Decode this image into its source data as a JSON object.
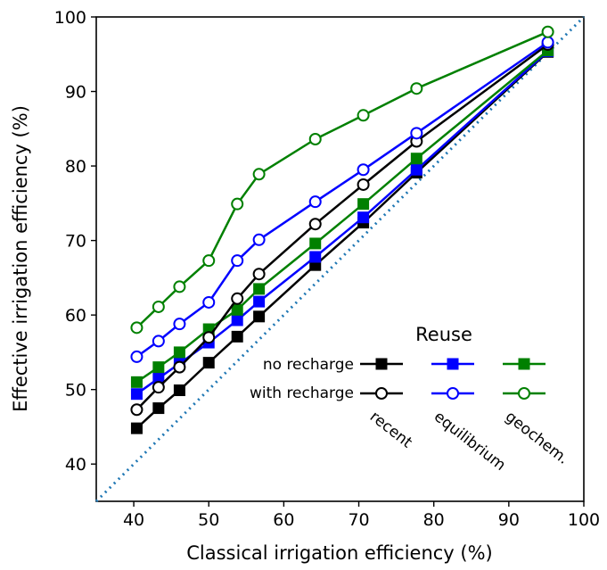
{
  "chart_data": {
    "type": "line",
    "title": "",
    "xlabel": "Classical irrigation efficiency (%)",
    "ylabel": "Effective irrigation efficiency  (%)",
    "xlim": [
      35,
      100
    ],
    "ylim": [
      35,
      100
    ],
    "xticks": [
      40,
      50,
      60,
      70,
      80,
      90,
      100
    ],
    "yticks": [
      40,
      50,
      60,
      70,
      80,
      90,
      100
    ],
    "x": [
      40.4,
      43.3,
      46.1,
      50.0,
      53.8,
      56.7,
      64.2,
      70.6,
      77.7,
      95.2
    ],
    "series": [
      {
        "scenario": "recent",
        "recharge": "no recharge",
        "marker": "square-filled",
        "color": "#000000",
        "values": [
          44.8,
          47.5,
          49.9,
          53.6,
          57.1,
          59.8,
          66.7,
          72.4,
          79.1,
          95.3
        ]
      },
      {
        "scenario": "equilibrium",
        "recharge": "no recharge",
        "marker": "square-filled",
        "color": "#0000ff",
        "values": [
          49.4,
          51.5,
          53.5,
          56.3,
          59.3,
          61.8,
          67.8,
          73.1,
          79.5,
          95.4
        ]
      },
      {
        "scenario": "geochem.",
        "recharge": "no recharge",
        "marker": "square-filled",
        "color": "#008000",
        "values": [
          51.0,
          53.0,
          55.0,
          58.1,
          60.7,
          63.5,
          69.6,
          74.9,
          81.0,
          95.5
        ]
      },
      {
        "scenario": "recent",
        "recharge": "with recharge",
        "marker": "circle-open",
        "color": "#000000",
        "values": [
          47.3,
          50.3,
          53.0,
          57.0,
          62.2,
          65.5,
          72.2,
          77.5,
          83.3,
          96.3
        ]
      },
      {
        "scenario": "equilibrium",
        "recharge": "with recharge",
        "marker": "circle-open",
        "color": "#0000ff",
        "values": [
          54.4,
          56.5,
          58.8,
          61.7,
          67.3,
          70.1,
          75.2,
          79.5,
          84.4,
          96.6
        ]
      },
      {
        "scenario": "geochem.",
        "recharge": "with recharge",
        "marker": "circle-open",
        "color": "#008000",
        "values": [
          58.3,
          61.1,
          63.8,
          67.3,
          74.9,
          78.9,
          83.6,
          86.8,
          90.4,
          98.0
        ]
      }
    ],
    "reference_line": {
      "style": "dotted",
      "color": "#1f77b4",
      "from": [
        35,
        35
      ],
      "to": [
        100,
        100
      ]
    },
    "legend": {
      "title": "Reuse",
      "row_labels": [
        "no recharge",
        "with recharge"
      ],
      "column_labels": [
        "recent",
        "equilibrium",
        "geochem."
      ],
      "placement": "bottom-right"
    },
    "grid": false
  }
}
